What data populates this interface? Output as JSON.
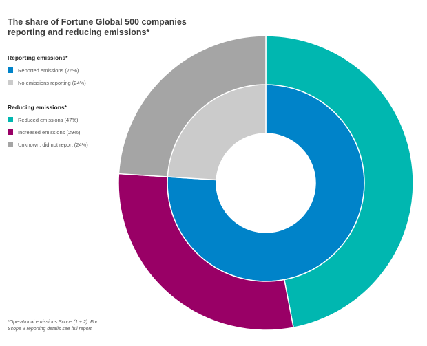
{
  "title": {
    "line1": "The share of Fortune Global 500 companies",
    "line2": "reporting and reducing emissions*"
  },
  "legend": {
    "reporting": {
      "heading": "Reporting emissions*",
      "items": [
        {
          "label": "Reported emissions (76%)",
          "color": "#0083c9"
        },
        {
          "label": "No emissions reporting (24%)",
          "color": "#cbcbcb"
        }
      ]
    },
    "reducing": {
      "heading": "Reducing emissions*",
      "items": [
        {
          "label": "Reduced emissions (47%)",
          "color": "#00b7b0"
        },
        {
          "label": "Increased emissions (29%)",
          "color": "#990066"
        },
        {
          "label": "Unknown, did not report (24%)",
          "color": "#a5a5a5"
        }
      ]
    }
  },
  "footnote": {
    "line1": "*Operational emissions Scope (1 + 2). For",
    "line2": "Scope 3 reporting details see full report."
  },
  "chart_data": {
    "type": "pie",
    "variant": "nested-donut",
    "start": "top, clockwise",
    "rings": [
      {
        "ring": "inner",
        "name": "Reporting emissions*",
        "slices": [
          {
            "label": "Reported emissions",
            "value": 76,
            "color": "#0083c9"
          },
          {
            "label": "No emissions reporting",
            "value": 24,
            "color": "#cbcbcb"
          }
        ]
      },
      {
        "ring": "outer",
        "name": "Reducing emissions*",
        "slices": [
          {
            "label": "Reduced emissions",
            "value": 47,
            "color": "#00b7b0"
          },
          {
            "label": "Increased emissions",
            "value": 29,
            "color": "#990066"
          },
          {
            "label": "Unknown, did not report",
            "value": 24,
            "color": "#a5a5a5"
          }
        ]
      }
    ]
  }
}
